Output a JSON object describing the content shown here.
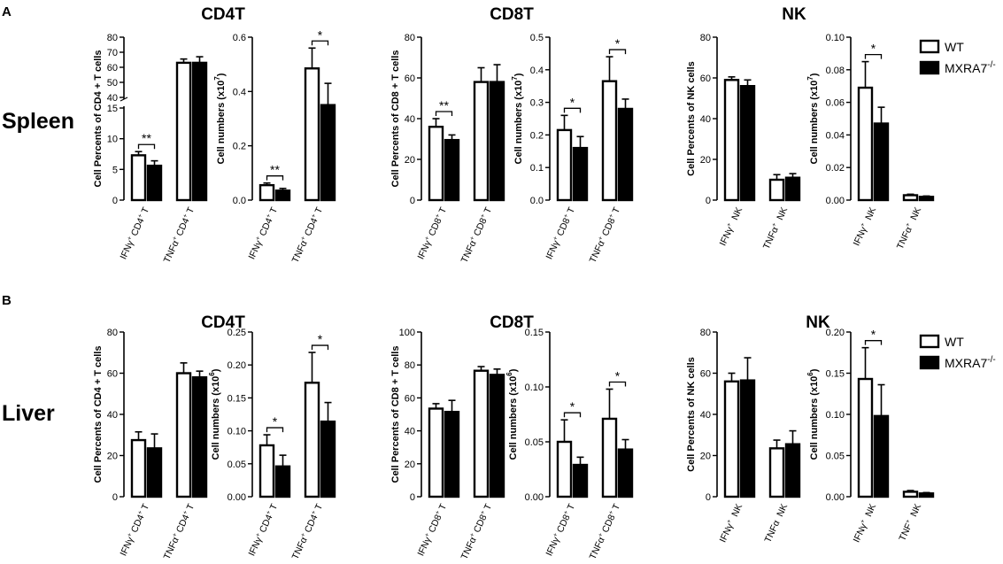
{
  "figure": {
    "panels": [
      {
        "letter": "A",
        "row_label": "Spleen",
        "groups": [
          "CD4T",
          "CD8T",
          "NK"
        ]
      },
      {
        "letter": "B",
        "row_label": "Liver",
        "groups": [
          "CD4T",
          "CD8T",
          "NK"
        ]
      }
    ],
    "legend": {
      "wt": "WT",
      "ko": "MXRA7",
      "ko_sup": "-/-"
    },
    "colors": {
      "wt": "#ffffff",
      "ko": "#000000",
      "axis": "#000000"
    }
  },
  "chart_data": [
    {
      "type": "bar",
      "panel": "A",
      "group": "CD4T",
      "broken_axis": true,
      "ylabel": "Cell Percents of CD4 + T cells",
      "yticks": [
        0,
        5,
        10,
        15,
        40,
        50,
        60,
        70,
        80
      ],
      "categories": [
        {
          "main": "IFNγ",
          "sup": "+",
          "rest": "CD4",
          "rest_sup": "+",
          "tail": "T"
        },
        {
          "main": "TNFα",
          "sup": "+",
          "rest": "CD4",
          "rest_sup": "+",
          "tail": "T"
        }
      ],
      "series": [
        {
          "name": "WT",
          "values": [
            7.3,
            63
          ],
          "errors": [
            0.6,
            2.5
          ]
        },
        {
          "name": "MXRA7-/-",
          "values": [
            5.6,
            63
          ],
          "errors": [
            0.8,
            4
          ]
        }
      ],
      "significance": [
        {
          "category": 0,
          "label": "**"
        }
      ]
    },
    {
      "type": "bar",
      "panel": "A",
      "group": "CD4T",
      "ylabel": "Cell numbers (x10",
      "ylabel_sup": "7",
      "ylabel_end": ")",
      "ylim": [
        0,
        0.6
      ],
      "yticks": [
        0.0,
        0.2,
        0.4,
        0.6
      ],
      "categories": [
        {
          "main": "IFNγ",
          "sup": "+",
          "rest": "CD4",
          "rest_sup": "+",
          "tail": "T"
        },
        {
          "main": "TNFα",
          "sup": "+",
          "rest": "CD4",
          "rest_sup": "+",
          "tail": "T"
        }
      ],
      "series": [
        {
          "name": "WT",
          "values": [
            0.055,
            0.485
          ],
          "errors": [
            0.008,
            0.075
          ]
        },
        {
          "name": "MXRA7-/-",
          "values": [
            0.035,
            0.35
          ],
          "errors": [
            0.008,
            0.08
          ]
        }
      ],
      "significance": [
        {
          "category": 0,
          "label": "**"
        },
        {
          "category": 1,
          "label": "*"
        }
      ]
    },
    {
      "type": "bar",
      "panel": "A",
      "group": "CD8T",
      "ylabel": "Cell Percents of CD8 + T cells",
      "ylim": [
        0,
        80
      ],
      "yticks": [
        0,
        20,
        40,
        60,
        80
      ],
      "categories": [
        {
          "main": "IFNγ",
          "sup": "+",
          "rest": "CD8",
          "rest_sup": "+",
          "tail": "T"
        },
        {
          "main": "TNFα",
          "sup": "+",
          "rest": "CD8",
          "rest_sup": "+",
          "tail": "T"
        }
      ],
      "series": [
        {
          "name": "WT",
          "values": [
            36,
            58
          ],
          "errors": [
            4,
            7
          ]
        },
        {
          "name": "MXRA7-/-",
          "values": [
            29.5,
            58
          ],
          "errors": [
            2.5,
            8.5
          ]
        }
      ],
      "significance": [
        {
          "category": 0,
          "label": "**"
        }
      ]
    },
    {
      "type": "bar",
      "panel": "A",
      "group": "CD8T",
      "ylabel": "Cell numbers (x10",
      "ylabel_sup": "7",
      "ylabel_end": ")",
      "ylim": [
        0,
        0.5
      ],
      "yticks": [
        0.0,
        0.1,
        0.2,
        0.3,
        0.4,
        0.5
      ],
      "categories": [
        {
          "main": "IFNγ",
          "sup": "+",
          "rest": "CD8",
          "rest_sup": "+",
          "tail": "T"
        },
        {
          "main": "TNFα",
          "sup": "+",
          "rest": "CD8",
          "rest_sup": "+",
          "tail": "T"
        }
      ],
      "series": [
        {
          "name": "WT",
          "values": [
            0.215,
            0.365
          ],
          "errors": [
            0.045,
            0.075
          ]
        },
        {
          "name": "MXRA7-/-",
          "values": [
            0.16,
            0.28
          ],
          "errors": [
            0.035,
            0.03
          ]
        }
      ],
      "significance": [
        {
          "category": 0,
          "label": "*"
        },
        {
          "category": 1,
          "label": "*"
        }
      ]
    },
    {
      "type": "bar",
      "panel": "A",
      "group": "NK",
      "ylabel": "Cell Percents of NK cells",
      "ylim": [
        0,
        80
      ],
      "yticks": [
        0,
        20,
        40,
        60,
        80
      ],
      "categories": [
        {
          "main": "IFNγ",
          "sup": "+",
          "rest": "",
          "rest_sup": "",
          "tail": "NK"
        },
        {
          "main": "TNFα",
          "sup": "+",
          "rest": "",
          "rest_sup": "",
          "tail": "NK"
        }
      ],
      "series": [
        {
          "name": "WT",
          "values": [
            59,
            10
          ],
          "errors": [
            1.5,
            2.5
          ]
        },
        {
          "name": "MXRA7-/-",
          "values": [
            56,
            11
          ],
          "errors": [
            3,
            2
          ]
        }
      ],
      "significance": []
    },
    {
      "type": "bar",
      "panel": "A",
      "group": "NK",
      "ylabel": "Cell numbers (x10",
      "ylabel_sup": "7",
      "ylabel_end": ")",
      "ylim": [
        0,
        0.1
      ],
      "yticks": [
        0.0,
        0.02,
        0.04,
        0.06,
        0.08,
        0.1
      ],
      "categories": [
        {
          "main": "IFNγ",
          "sup": "+",
          "rest": "",
          "rest_sup": "",
          "tail": "NK"
        },
        {
          "main": "TNFα",
          "sup": "+",
          "rest": "",
          "rest_sup": "",
          "tail": "NK"
        }
      ],
      "series": [
        {
          "name": "WT",
          "values": [
            0.069,
            0.003
          ],
          "errors": [
            0.016,
            0.0006
          ]
        },
        {
          "name": "MXRA7-/-",
          "values": [
            0.047,
            0.002
          ],
          "errors": [
            0.01,
            0.0005
          ]
        }
      ],
      "significance": [
        {
          "category": 0,
          "label": "*"
        }
      ]
    },
    {
      "type": "bar",
      "panel": "B",
      "group": "CD4T",
      "ylabel": "Cell Percents of CD4 + T cells",
      "ylim": [
        0,
        80
      ],
      "yticks": [
        0,
        20,
        40,
        60,
        80
      ],
      "categories": [
        {
          "main": "IFNγ",
          "sup": "+",
          "rest": "CD4",
          "rest_sup": "+",
          "tail": "T"
        },
        {
          "main": "TNFα",
          "sup": "+",
          "rest": "CD4",
          "rest_sup": "+",
          "tail": "T"
        }
      ],
      "series": [
        {
          "name": "WT",
          "values": [
            27.5,
            60
          ],
          "errors": [
            4,
            5
          ]
        },
        {
          "name": "MXRA7-/-",
          "values": [
            23.5,
            58
          ],
          "errors": [
            7,
            3
          ]
        }
      ],
      "significance": []
    },
    {
      "type": "bar",
      "panel": "B",
      "group": "CD4T",
      "ylabel": "Cell numbers (x10",
      "ylabel_sup": "6",
      "ylabel_end": ")",
      "ylim": [
        0,
        0.25
      ],
      "yticks": [
        0.0,
        0.05,
        0.1,
        0.15,
        0.2,
        0.25
      ],
      "categories": [
        {
          "main": "IFNγ",
          "sup": "+",
          "rest": "CD4",
          "rest_sup": "+",
          "tail": "T"
        },
        {
          "main": "TNFα",
          "sup": "+",
          "rest": "CD4",
          "rest_sup": "+",
          "tail": "T"
        }
      ],
      "series": [
        {
          "name": "WT",
          "values": [
            0.078,
            0.173
          ],
          "errors": [
            0.016,
            0.046
          ]
        },
        {
          "name": "MXRA7-/-",
          "values": [
            0.046,
            0.114
          ],
          "errors": [
            0.017,
            0.029
          ]
        }
      ],
      "significance": [
        {
          "category": 0,
          "label": "*"
        },
        {
          "category": 1,
          "label": "*"
        }
      ]
    },
    {
      "type": "bar",
      "panel": "B",
      "group": "CD8T",
      "ylabel": "Cell Percents of CD8 + T cells",
      "ylim": [
        0,
        100
      ],
      "yticks": [
        0,
        20,
        40,
        60,
        80,
        100
      ],
      "categories": [
        {
          "main": "IFNγ",
          "sup": "+",
          "rest": "CD8",
          "rest_sup": "+",
          "tail": "T"
        },
        {
          "main": "TNFα",
          "sup": "+",
          "rest": "CD8",
          "rest_sup": "+",
          "tail": "T"
        }
      ],
      "series": [
        {
          "name": "WT",
          "values": [
            53.5,
            76.5
          ],
          "errors": [
            3,
            2.5
          ]
        },
        {
          "name": "MXRA7-/-",
          "values": [
            51.5,
            74
          ],
          "errors": [
            7,
            3.5
          ]
        }
      ],
      "significance": []
    },
    {
      "type": "bar",
      "panel": "B",
      "group": "CD8T",
      "ylabel": "Cell numbers (x10",
      "ylabel_sup": "6",
      "ylabel_end": ")",
      "ylim": [
        0,
        0.15
      ],
      "yticks": [
        0.0,
        0.05,
        0.1,
        0.15
      ],
      "categories": [
        {
          "main": "IFNγ",
          "sup": "+",
          "rest": "CD8",
          "rest_sup": "+",
          "tail": "T"
        },
        {
          "main": "TNFα",
          "sup": "+",
          "rest": "CD8",
          "rest_sup": "+",
          "tail": "T"
        }
      ],
      "series": [
        {
          "name": "WT",
          "values": [
            0.05,
            0.071
          ],
          "errors": [
            0.02,
            0.027
          ]
        },
        {
          "name": "MXRA7-/-",
          "values": [
            0.029,
            0.043
          ],
          "errors": [
            0.007,
            0.009
          ]
        }
      ],
      "significance": [
        {
          "category": 0,
          "label": "*"
        },
        {
          "category": 1,
          "label": "*"
        }
      ]
    },
    {
      "type": "bar",
      "panel": "B",
      "group": "NK",
      "ylabel": "Cell Percents of NK cells",
      "ylim": [
        0,
        80
      ],
      "yticks": [
        0,
        20,
        40,
        60,
        80
      ],
      "categories": [
        {
          "main": "IFNγ",
          "sup": "+",
          "rest": "",
          "rest_sup": "",
          "tail": "NK"
        },
        {
          "main": "TNFα",
          "sup": "",
          "rest": "",
          "rest_sup": "",
          "tail": "NK"
        }
      ],
      "series": [
        {
          "name": "WT",
          "values": [
            56,
            23.5
          ],
          "errors": [
            4,
            4
          ]
        },
        {
          "name": "MXRA7-/-",
          "values": [
            56.5,
            25.5
          ],
          "errors": [
            11,
            6.5
          ]
        }
      ],
      "significance": []
    },
    {
      "type": "bar",
      "panel": "B",
      "group": "NK",
      "ylabel": "Cell numbers (x10",
      "ylabel_sup": "6",
      "ylabel_end": ")",
      "ylim": [
        0,
        0.2
      ],
      "yticks": [
        0.0,
        0.05,
        0.1,
        0.15,
        0.2
      ],
      "categories": [
        {
          "main": "IFNγ",
          "sup": "+",
          "rest": "",
          "rest_sup": "",
          "tail": "NK"
        },
        {
          "main": "TNF",
          "sup": "+",
          "rest": "",
          "rest_sup": "",
          "tail": "NK"
        }
      ],
      "series": [
        {
          "name": "WT",
          "values": [
            0.143,
            0.006
          ],
          "errors": [
            0.038,
            0.0015
          ]
        },
        {
          "name": "MXRA7-/-",
          "values": [
            0.098,
            0.004
          ],
          "errors": [
            0.038,
            0.001
          ]
        }
      ],
      "significance": [
        {
          "category": 0,
          "label": "*"
        }
      ]
    }
  ]
}
